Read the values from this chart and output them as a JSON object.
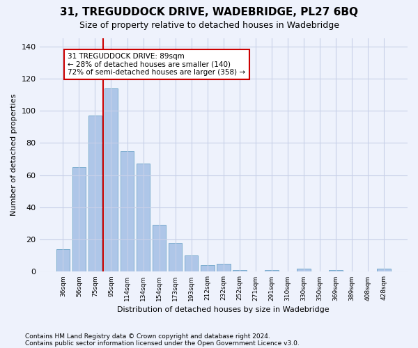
{
  "title": "31, TREGUDDOCK DRIVE, WADEBRIDGE, PL27 6BQ",
  "subtitle": "Size of property relative to detached houses in Wadebridge",
  "xlabel": "Distribution of detached houses by size in Wadebridge",
  "ylabel": "Number of detached properties",
  "footnote1": "Contains HM Land Registry data © Crown copyright and database right 2024.",
  "footnote2": "Contains public sector information licensed under the Open Government Licence v3.0.",
  "bar_categories": [
    "36sqm",
    "56sqm",
    "75sqm",
    "95sqm",
    "114sqm",
    "134sqm",
    "154sqm",
    "173sqm",
    "193sqm",
    "212sqm",
    "232sqm",
    "252sqm",
    "271sqm",
    "291sqm",
    "310sqm",
    "330sqm",
    "350sqm",
    "369sqm",
    "389sqm",
    "408sqm",
    "428sqm"
  ],
  "bar_values": [
    14,
    65,
    97,
    114,
    75,
    67,
    29,
    18,
    10,
    4,
    5,
    1,
    0,
    1,
    0,
    2,
    0,
    1,
    0,
    0,
    2
  ],
  "bar_color": "#aec6e8",
  "bar_edge_color": "#5a9abf",
  "bg_color": "#eef2fc",
  "grid_color": "#c8d0e8",
  "vline_color": "#cc0000",
  "vline_bin_index": 3,
  "annotation_box_text": "31 TREGUDDOCK DRIVE: 89sqm\n← 28% of detached houses are smaller (140)\n72% of semi-detached houses are larger (358) →",
  "annotation_box_color": "#cc0000",
  "ylim": [
    0,
    145
  ],
  "yticks": [
    0,
    20,
    40,
    60,
    80,
    100,
    120,
    140
  ],
  "title_fontsize": 11,
  "subtitle_fontsize": 9,
  "annotation_fontsize": 7.5,
  "footnote_fontsize": 6.5
}
